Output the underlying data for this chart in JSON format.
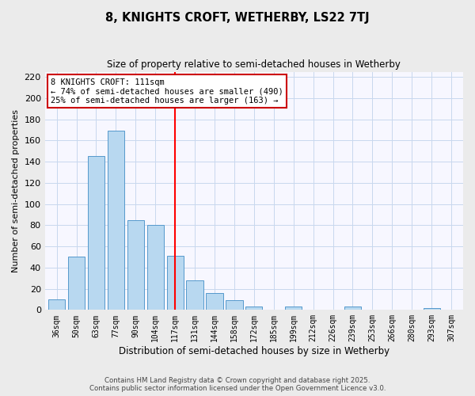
{
  "title": "8, KNIGHTS CROFT, WETHERBY, LS22 7TJ",
  "subtitle": "Size of property relative to semi-detached houses in Wetherby",
  "xlabel": "Distribution of semi-detached houses by size in Wetherby",
  "ylabel": "Number of semi-detached properties",
  "bar_labels": [
    "36sqm",
    "50sqm",
    "63sqm",
    "77sqm",
    "90sqm",
    "104sqm",
    "117sqm",
    "131sqm",
    "144sqm",
    "158sqm",
    "172sqm",
    "185sqm",
    "199sqm",
    "212sqm",
    "226sqm",
    "239sqm",
    "253sqm",
    "266sqm",
    "280sqm",
    "293sqm",
    "307sqm"
  ],
  "bar_values": [
    10,
    50,
    145,
    169,
    85,
    80,
    51,
    28,
    16,
    9,
    3,
    0,
    3,
    0,
    0,
    3,
    0,
    0,
    0,
    2,
    0
  ],
  "bar_color": "#b8d8f0",
  "bar_edge_color": "#5599cc",
  "vline_x": 6.0,
  "pct_smaller": 74,
  "count_smaller": 490,
  "pct_larger": 25,
  "count_larger": 163,
  "ylim": [
    0,
    225
  ],
  "yticks": [
    0,
    20,
    40,
    60,
    80,
    100,
    120,
    140,
    160,
    180,
    200,
    220
  ],
  "footnote1": "Contains HM Land Registry data © Crown copyright and database right 2025.",
  "footnote2": "Contains public sector information licensed under the Open Government Licence v3.0.",
  "bg_color": "#ebebeb",
  "plot_bg_color": "#f7f7ff",
  "grid_color": "#c8d8ee"
}
